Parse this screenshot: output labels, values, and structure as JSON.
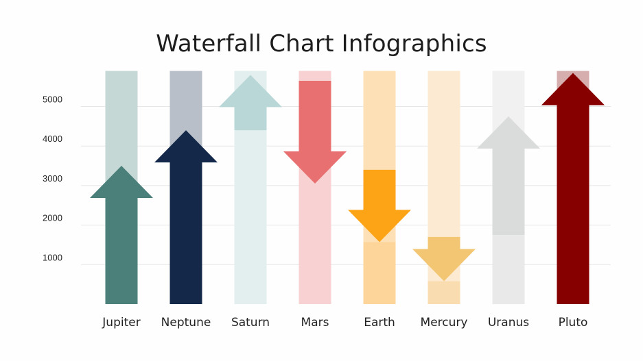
{
  "slide": {
    "title": "Waterfall Chart Infographics"
  },
  "chart_data": {
    "type": "bar",
    "title": "Waterfall Chart Infographics",
    "xlabel": "",
    "ylabel": "",
    "ylim": [
      0,
      5900
    ],
    "grid": true,
    "yticks": [
      1000,
      2000,
      3000,
      4000,
      5000
    ],
    "categories": [
      "Jupiter",
      "Neptune",
      "Saturn",
      "Mars",
      "Earth",
      "Mercury",
      "Uranus",
      "Pluto"
    ],
    "series": [
      {
        "start": [
          0,
          0,
          4400,
          5650,
          3400,
          1700,
          1750,
          0
        ],
        "end": [
          3500,
          4400,
          5800,
          3050,
          1570,
          580,
          4750,
          5850
        ]
      }
    ],
    "colors": {
      "Jupiter": {
        "background": "#c5d8d6",
        "base": "#9dbab8",
        "arrow": "#4a7f7a"
      },
      "Neptune": {
        "background": "#b8bfc9",
        "base": "#8a939f",
        "arrow": "#14294a"
      },
      "Saturn": {
        "background": "#e3efee",
        "base": "#e3efee",
        "arrow": "#b8d7d6"
      },
      "Mars": {
        "background": "#f8d2d2",
        "base": "#f8d2d2",
        "arrow": "#e87070"
      },
      "Earth": {
        "background": "#fde0b5",
        "base": "#fdd59a",
        "arrow": "#fca316"
      },
      "Mercury": {
        "background": "#fcebd2",
        "base": "#f9dcaf",
        "arrow": "#f2c673"
      },
      "Uranus": {
        "background": "#f1f1f1",
        "base": "#e9e9e9",
        "arrow": "#dadcdc"
      },
      "Pluto": {
        "background": "#d6aeae",
        "base": "#d6aeae",
        "arrow": "#870000"
      },
      "grid": "#e6e6e6"
    }
  }
}
